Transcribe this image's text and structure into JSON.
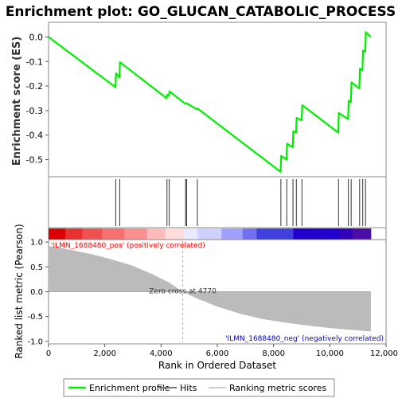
{
  "chart_data": {
    "type": "line",
    "title": "Enrichment plot: GO_GLUCAN_CATABOLIC_PROCESS",
    "es_panel": {
      "ylabel": "Enrichment score (ES)",
      "ylim": [
        -0.57,
        0.06
      ],
      "yticks": [
        0.0,
        -0.1,
        -0.2,
        -0.3,
        -0.4,
        -0.5
      ],
      "ytick_labels": [
        "0.0",
        "-0.1",
        "-0.2",
        "-0.3",
        "-0.4",
        "-0.5"
      ],
      "series": [
        {
          "name": "Enrichment profile",
          "color": "#00ee00",
          "x": [
            0,
            2380,
            2400,
            2520,
            2540,
            4200,
            4220,
            4280,
            4300,
            4860,
            4900,
            5280,
            5300,
            8250,
            8270,
            8460,
            8480,
            8680,
            8700,
            8800,
            8820,
            9000,
            9020,
            10300,
            10320,
            10650,
            10670,
            10750,
            10770,
            11050,
            11070,
            11160,
            11180,
            11260,
            11280,
            11460
          ],
          "y": [
            0.0,
            -0.205,
            -0.148,
            -0.165,
            -0.103,
            -0.25,
            -0.235,
            -0.238,
            -0.222,
            -0.272,
            -0.27,
            -0.295,
            -0.292,
            -0.55,
            -0.485,
            -0.5,
            -0.435,
            -0.45,
            -0.385,
            -0.39,
            -0.33,
            -0.34,
            -0.278,
            -0.39,
            -0.31,
            -0.335,
            -0.26,
            -0.265,
            -0.185,
            -0.21,
            -0.13,
            -0.135,
            -0.055,
            -0.06,
            0.02,
            0.0
          ]
        }
      ]
    },
    "hits": [
      2390,
      2530,
      4210,
      4290,
      4870,
      4910,
      5290,
      8260,
      8470,
      8690,
      8810,
      9010,
      10310,
      10660,
      10760,
      11060,
      11170,
      11270
    ],
    "heatmap_bar": {
      "colors": [
        "#dd0000",
        "#e83030",
        "#f05050",
        "#f77070",
        "#fa9090",
        "#ffbbbb",
        "#ffdcdc",
        "#eaeaff",
        "#d0d0ff",
        "#a0a0ff",
        "#7070f0",
        "#4040e0",
        "#2000cc",
        "#3000bb",
        "#4a0da8"
      ],
      "stops": [
        0,
        600,
        1200,
        1900,
        2700,
        3500,
        4150,
        4800,
        5300,
        6150,
        6900,
        7400,
        8700,
        10300,
        10800,
        11460
      ]
    },
    "metric_panel": {
      "ylabel": "Ranked list metric (Pearson)",
      "xlabel": "Rank in Ordered Dataset",
      "ylim": [
        -1.05,
        1.05
      ],
      "yticks": [
        1.0,
        0.5,
        0.0,
        -0.5,
        -1.0
      ],
      "ytick_labels": [
        "1.0",
        "0.5",
        "0.0",
        "-0.5",
        "-1.0"
      ],
      "xticks": [
        0,
        2000,
        4000,
        6000,
        8000,
        10000,
        12000
      ],
      "xtick_labels": [
        "0",
        "2,000",
        "4,000",
        "6,000",
        "8,000",
        "10,000",
        "12,000"
      ],
      "xlim": [
        0,
        12000
      ],
      "fill_color": "#bbbbbb",
      "x": [
        0,
        300,
        800,
        1500,
        2200,
        3000,
        3700,
        4300,
        4770,
        5300,
        6000,
        6800,
        7600,
        8500,
        9500,
        10300,
        11000,
        11460
      ],
      "y": [
        0.92,
        0.9,
        0.84,
        0.76,
        0.66,
        0.52,
        0.35,
        0.18,
        0.0,
        -0.14,
        -0.3,
        -0.44,
        -0.55,
        -0.63,
        -0.7,
        -0.75,
        -0.78,
        -0.8
      ],
      "zero_cross_rank": 4770,
      "zero_cross_label": "Zero cross at 4770",
      "pos_label": "'ILMN_1688480_pos' (positively correlated)",
      "neg_label": "'ILMN_1688480_neg' (negatively correlated)",
      "pos_color": "#ff0000",
      "neg_color": "#0000cc"
    },
    "legend": {
      "placement": "bottom",
      "items": [
        {
          "label": "Enrichment profile",
          "color": "#00ee00",
          "kind": "line"
        },
        {
          "label": "Hits",
          "color": "#777777",
          "kind": "line"
        },
        {
          "label": "Ranking metric scores",
          "color": "#cccccc",
          "kind": "line"
        }
      ]
    }
  }
}
